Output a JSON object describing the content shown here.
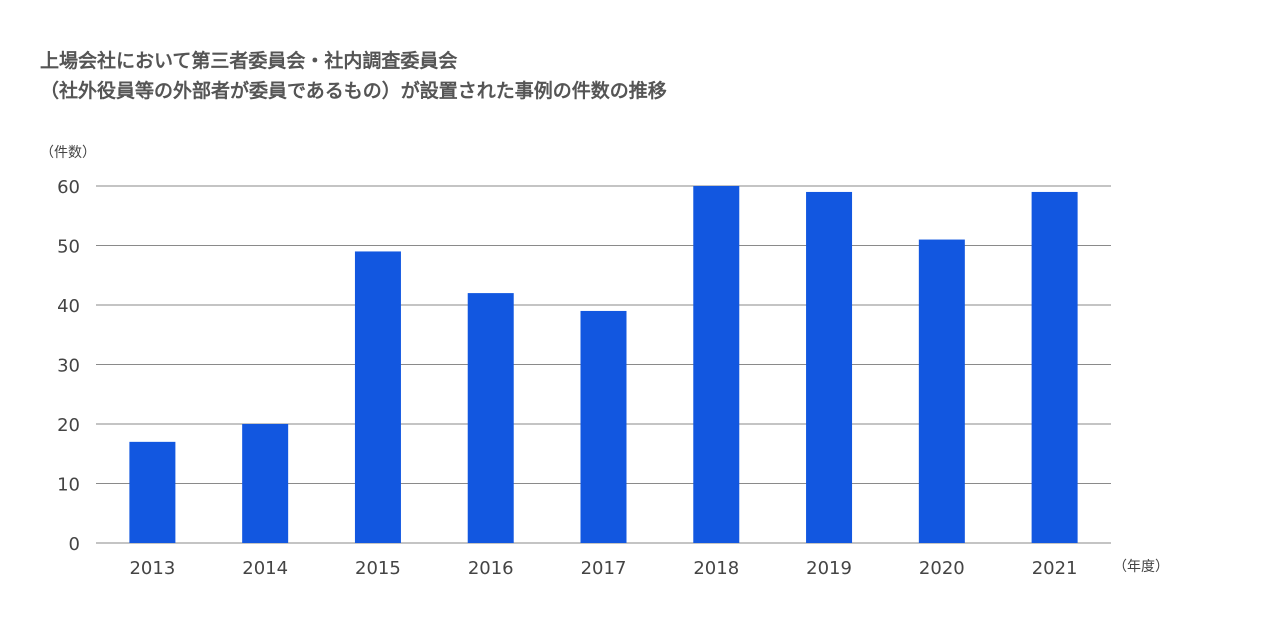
{
  "title_line1": "上場会社において第三者委員会・社内調査委員会",
  "title_line2": "（社外役員等の外部者が委員であるもの）が設置された事例の件数の推移",
  "chart_data": {
    "type": "bar",
    "title": "上場会社において第三者委員会・社内調査委員会（社外役員等の外部者が委員であるもの）が設置された事例の件数の推移",
    "ylabel": "（件数）",
    "xlabel": "（年度）",
    "categories": [
      "2013",
      "2014",
      "2015",
      "2016",
      "2017",
      "2018",
      "2019",
      "2020",
      "2021"
    ],
    "values": [
      17,
      20,
      49,
      42,
      39,
      60,
      59,
      51,
      59
    ],
    "ylim": [
      0,
      60
    ],
    "yticks": [
      "0",
      "10",
      "20",
      "30",
      "40",
      "50",
      "60"
    ],
    "grid": true,
    "bar_color": "#1257e0",
    "grid_color": "#8a8a8a"
  }
}
